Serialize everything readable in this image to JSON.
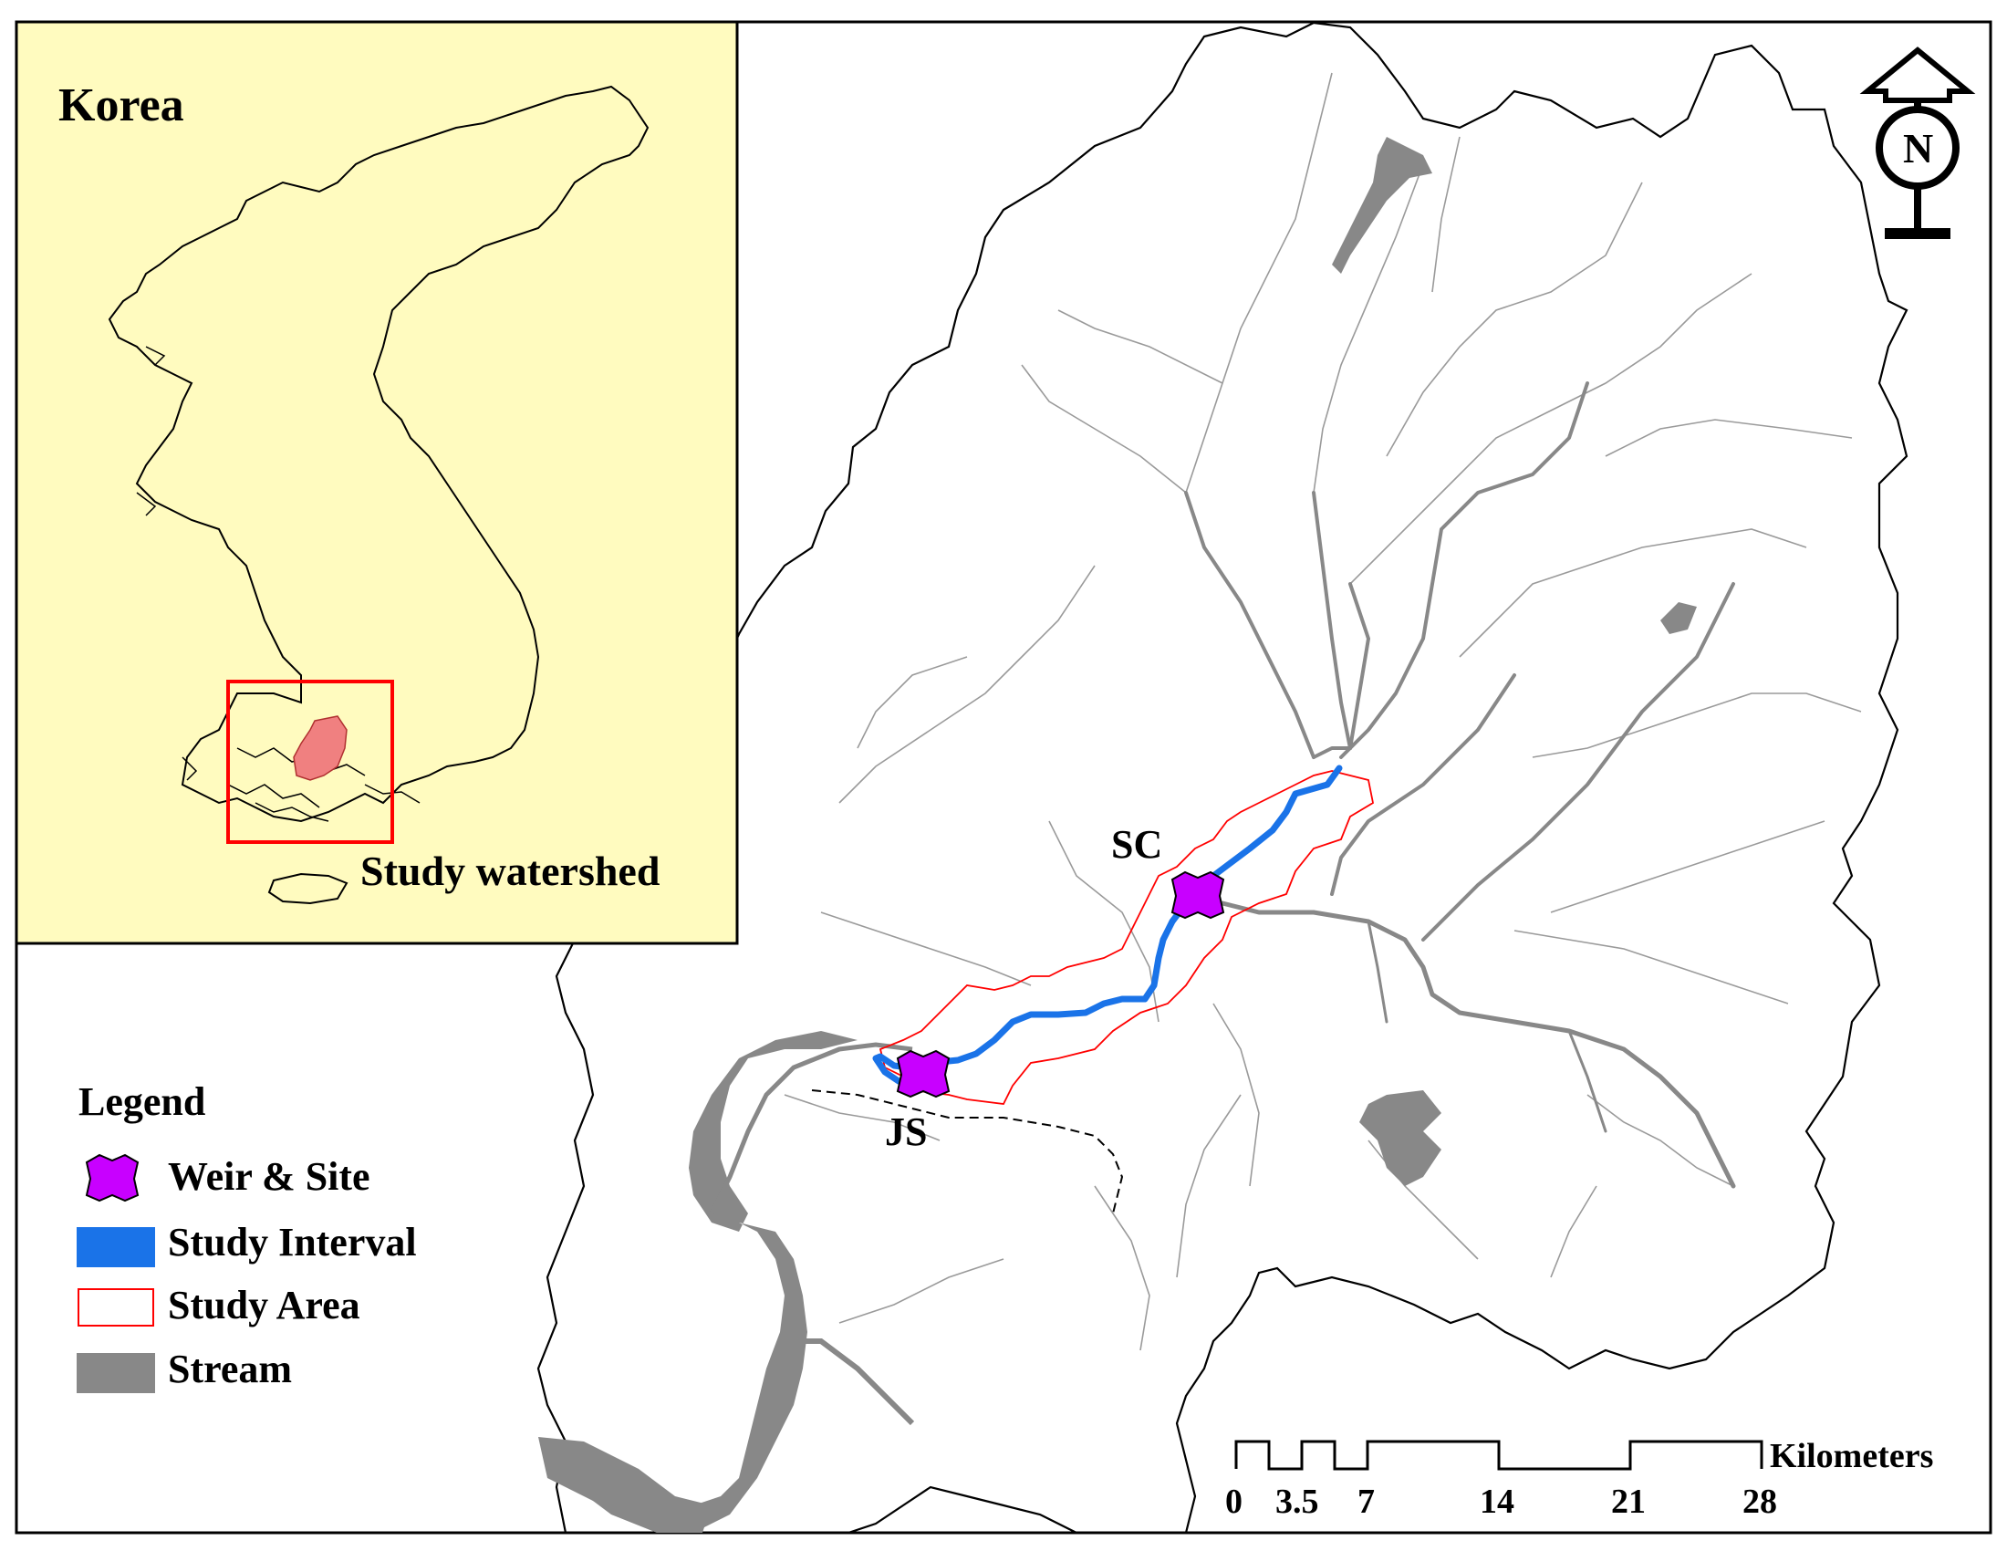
{
  "inset": {
    "title": "Korea",
    "box_label": "Study watershed"
  },
  "sites": [
    {
      "id": "SC",
      "label": "SC"
    },
    {
      "id": "JS",
      "label": "JS"
    }
  ],
  "legend": {
    "title": "Legend",
    "items": [
      {
        "label": "Weir & Site",
        "symbol": "weir",
        "color": "#c800ff"
      },
      {
        "label": "Study Interval",
        "symbol": "line",
        "color": "#1a73e8"
      },
      {
        "label": "Study Area",
        "symbol": "outline",
        "color": "#ff0000"
      },
      {
        "label": "Stream",
        "symbol": "fill",
        "color": "#888888"
      }
    ]
  },
  "scalebar": {
    "ticks": [
      "0",
      "3.5",
      "7",
      "14",
      "21",
      "28"
    ],
    "unit": "Kilometers"
  },
  "north_arrow": {
    "letter": "N"
  },
  "colors": {
    "inset_bg": "#fffbbf",
    "study_box": "#ff0000",
    "watershed_fill": "#f08080",
    "stream": "#888888",
    "tributary": "#a0a0a0",
    "study_interval": "#1a73e8",
    "study_area": "#ff0000",
    "weir": "#c800ff"
  }
}
